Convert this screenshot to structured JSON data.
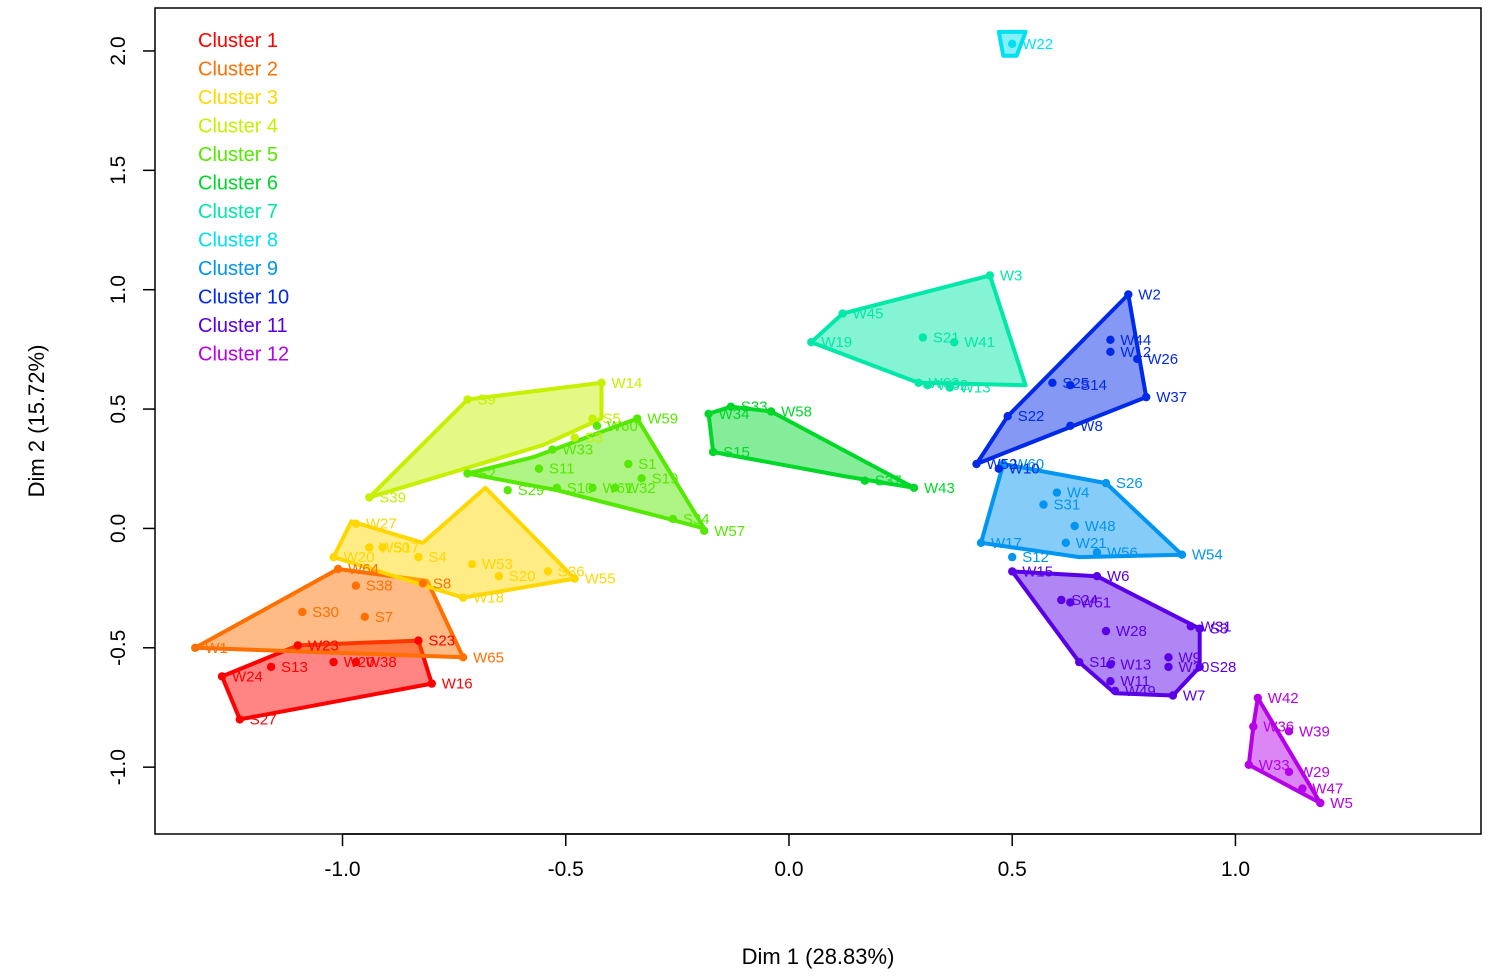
{
  "chart_data": {
    "type": "scatter",
    "xlabel": "Dim 1 (28.83%)",
    "ylabel": "Dim 2 (15.72%)",
    "xlim": [
      -1.42,
      1.55
    ],
    "ylim": [
      -1.28,
      2.18
    ],
    "x_ticks": [
      -1.0,
      -0.5,
      0.0,
      0.5,
      1.0
    ],
    "x_tick_labels": [
      "-1.0",
      "-0.5",
      "0.0",
      "0.5",
      "1.0"
    ],
    "y_ticks": [
      -1.0,
      -0.5,
      0.0,
      0.5,
      1.0,
      1.5,
      2.0
    ],
    "y_tick_labels": [
      "-1.0",
      "-0.5",
      "0.0",
      "0.5",
      "1.0",
      "1.5",
      "2.0"
    ],
    "grid": false,
    "legend_position": "top-left",
    "series": [
      {
        "name": "Cluster 1",
        "color": "#FF0000",
        "hull": [
          [
            -1.23,
            -0.8
          ],
          [
            -1.27,
            -0.62
          ],
          [
            -1.1,
            -0.49
          ],
          [
            -0.83,
            -0.47
          ],
          [
            -0.8,
            -0.65
          ]
        ],
        "points": [
          {
            "label": "W24",
            "x": -1.27,
            "y": -0.62
          },
          {
            "label": "S27",
            "x": -1.23,
            "y": -0.8
          },
          {
            "label": "S13",
            "x": -1.16,
            "y": -0.58
          },
          {
            "label": "W23",
            "x": -1.1,
            "y": -0.49
          },
          {
            "label": "W20",
            "x": -1.02,
            "y": -0.56
          },
          {
            "label": "W38",
            "x": -0.97,
            "y": -0.56
          },
          {
            "label": "S23",
            "x": -0.83,
            "y": -0.47
          },
          {
            "label": "W16",
            "x": -0.8,
            "y": -0.65
          }
        ]
      },
      {
        "name": "Cluster 2",
        "color": "#FF7000",
        "hull": [
          [
            -1.33,
            -0.5
          ],
          [
            -1.01,
            -0.17
          ],
          [
            -0.81,
            -0.22
          ],
          [
            -0.73,
            -0.54
          ]
        ],
        "points": [
          {
            "label": "W1",
            "x": -1.33,
            "y": -0.5
          },
          {
            "label": "S30",
            "x": -1.09,
            "y": -0.35
          },
          {
            "label": "S7",
            "x": -0.95,
            "y": -0.37
          },
          {
            "label": "S38",
            "x": -0.97,
            "y": -0.24
          },
          {
            "label": "W64",
            "x": -1.01,
            "y": -0.17
          },
          {
            "label": "S8",
            "x": -0.82,
            "y": -0.23
          },
          {
            "label": "W65",
            "x": -0.73,
            "y": -0.54
          }
        ]
      },
      {
        "name": "Cluster 3",
        "color": "#FFD700",
        "hull": [
          [
            -1.02,
            -0.12
          ],
          [
            -0.98,
            0.03
          ],
          [
            -0.91,
            -0.01
          ],
          [
            -0.82,
            -0.06
          ],
          [
            -0.68,
            0.17
          ],
          [
            -0.48,
            -0.21
          ],
          [
            -0.73,
            -0.29
          ]
        ],
        "points": [
          {
            "label": "W27",
            "x": -0.97,
            "y": 0.02
          },
          {
            "label": "W20",
            "x": -1.02,
            "y": -0.12
          },
          {
            "label": "W50",
            "x": -0.94,
            "y": -0.08
          },
          {
            "label": "S17",
            "x": -0.91,
            "y": -0.08
          },
          {
            "label": "S4",
            "x": -0.83,
            "y": -0.12
          },
          {
            "label": "W53",
            "x": -0.71,
            "y": -0.15
          },
          {
            "label": "S20",
            "x": -0.65,
            "y": -0.2
          },
          {
            "label": "S36",
            "x": -0.54,
            "y": -0.18
          },
          {
            "label": "W55",
            "x": -0.48,
            "y": -0.21
          },
          {
            "label": "W18",
            "x": -0.73,
            "y": -0.29
          }
        ]
      },
      {
        "name": "Cluster 4",
        "color": "#C5F000",
        "hull": [
          [
            -0.94,
            0.13
          ],
          [
            -0.72,
            0.54
          ],
          [
            -0.42,
            0.61
          ],
          [
            -0.42,
            0.46
          ],
          [
            -0.55,
            0.35
          ]
        ],
        "points": [
          {
            "label": "S9",
            "x": -0.72,
            "y": 0.54
          },
          {
            "label": "W14",
            "x": -0.42,
            "y": 0.61
          },
          {
            "label": "S39",
            "x": -0.94,
            "y": 0.13
          },
          {
            "label": "S5",
            "x": -0.44,
            "y": 0.46
          },
          {
            "label": "S3",
            "x": -0.48,
            "y": 0.38
          }
        ]
      },
      {
        "name": "Cluster 5",
        "color": "#55E800",
        "hull": [
          [
            -0.72,
            0.23
          ],
          [
            -0.57,
            0.3
          ],
          [
            -0.34,
            0.46
          ],
          [
            -0.19,
            0.0
          ],
          [
            -0.29,
            0.05
          ],
          [
            -0.52,
            0.16
          ]
        ],
        "points": [
          {
            "label": "W59",
            "x": -0.34,
            "y": 0.46
          },
          {
            "label": "W60",
            "x": -0.43,
            "y": 0.43
          },
          {
            "label": "W33",
            "x": -0.53,
            "y": 0.33
          },
          {
            "label": "S11",
            "x": -0.56,
            "y": 0.25
          },
          {
            "label": "S1",
            "x": -0.36,
            "y": 0.27
          },
          {
            "label": "S19",
            "x": -0.33,
            "y": 0.21
          },
          {
            "label": "S10",
            "x": -0.52,
            "y": 0.17
          },
          {
            "label": "W61",
            "x": -0.44,
            "y": 0.17
          },
          {
            "label": "W32",
            "x": -0.39,
            "y": 0.17
          },
          {
            "label": "S2",
            "x": -0.72,
            "y": 0.23
          },
          {
            "label": "S29",
            "x": -0.63,
            "y": 0.16
          },
          {
            "label": "S34",
            "x": -0.26,
            "y": 0.04
          },
          {
            "label": "W57",
            "x": -0.19,
            "y": -0.01
          }
        ]
      },
      {
        "name": "Cluster 6",
        "color": "#00D829",
        "hull": [
          [
            -0.18,
            0.48
          ],
          [
            -0.13,
            0.51
          ],
          [
            -0.04,
            0.49
          ],
          [
            0.28,
            0.17
          ],
          [
            0.12,
            0.22
          ],
          [
            -0.17,
            0.32
          ]
        ],
        "points": [
          {
            "label": "S33",
            "x": -0.13,
            "y": 0.51
          },
          {
            "label": "W34",
            "x": -0.18,
            "y": 0.48
          },
          {
            "label": "W58",
            "x": -0.04,
            "y": 0.49
          },
          {
            "label": "S15",
            "x": -0.17,
            "y": 0.32
          },
          {
            "label": "S37",
            "x": 0.17,
            "y": 0.2
          },
          {
            "label": "W43",
            "x": 0.28,
            "y": 0.17
          }
        ]
      },
      {
        "name": "Cluster 7",
        "color": "#00E8A8",
        "hull": [
          [
            0.05,
            0.78
          ],
          [
            0.12,
            0.9
          ],
          [
            0.45,
            1.06
          ],
          [
            0.53,
            0.6
          ],
          [
            0.29,
            0.61
          ]
        ],
        "points": [
          {
            "label": "W3",
            "x": 0.45,
            "y": 1.06
          },
          {
            "label": "W45",
            "x": 0.12,
            "y": 0.9
          },
          {
            "label": "W19",
            "x": 0.05,
            "y": 0.78
          },
          {
            "label": "S21",
            "x": 0.3,
            "y": 0.8
          },
          {
            "label": "W41",
            "x": 0.37,
            "y": 0.78
          },
          {
            "label": "W62",
            "x": 0.31,
            "y": 0.6
          },
          {
            "label": "W63",
            "x": 0.29,
            "y": 0.61
          },
          {
            "label": "W13",
            "x": 0.36,
            "y": 0.59
          }
        ]
      },
      {
        "name": "Cluster 8",
        "color": "#00E0F0",
        "hull": [
          [
            0.47,
            2.08
          ],
          [
            0.53,
            2.08
          ],
          [
            0.51,
            1.98
          ],
          [
            0.48,
            1.98
          ]
        ],
        "points": [
          {
            "label": "W22",
            "x": 0.5,
            "y": 2.03
          }
        ]
      },
      {
        "name": "Cluster 9",
        "color": "#0095F0",
        "hull": [
          [
            0.43,
            -0.06
          ],
          [
            0.48,
            0.27
          ],
          [
            0.71,
            0.19
          ],
          [
            0.88,
            -0.11
          ],
          [
            0.65,
            -0.12
          ]
        ],
        "points": [
          {
            "label": "W60",
            "x": 0.48,
            "y": 0.27
          },
          {
            "label": "S26",
            "x": 0.71,
            "y": 0.19
          },
          {
            "label": "W4",
            "x": 0.6,
            "y": 0.15
          },
          {
            "label": "S31",
            "x": 0.57,
            "y": 0.1
          },
          {
            "label": "W48",
            "x": 0.64,
            "y": 0.01
          },
          {
            "label": "W17",
            "x": 0.43,
            "y": -0.06
          },
          {
            "label": "W21",
            "x": 0.62,
            "y": -0.06
          },
          {
            "label": "S12",
            "x": 0.5,
            "y": -0.12
          },
          {
            "label": "W56",
            "x": 0.69,
            "y": -0.1
          },
          {
            "label": "W54",
            "x": 0.88,
            "y": -0.11
          }
        ]
      },
      {
        "name": "Cluster 10",
        "color": "#002AE8",
        "hull": [
          [
            0.42,
            0.27
          ],
          [
            0.49,
            0.47
          ],
          [
            0.76,
            0.98
          ],
          [
            0.8,
            0.55
          ]
        ],
        "points": [
          {
            "label": "W2",
            "x": 0.76,
            "y": 0.98
          },
          {
            "label": "W44",
            "x": 0.72,
            "y": 0.79
          },
          {
            "label": "W12",
            "x": 0.72,
            "y": 0.74
          },
          {
            "label": "W26",
            "x": 0.78,
            "y": 0.71
          },
          {
            "label": "W37",
            "x": 0.8,
            "y": 0.55
          },
          {
            "label": "S25",
            "x": 0.59,
            "y": 0.61
          },
          {
            "label": "S14",
            "x": 0.63,
            "y": 0.6
          },
          {
            "label": "S22",
            "x": 0.49,
            "y": 0.47
          },
          {
            "label": "W8",
            "x": 0.63,
            "y": 0.43
          },
          {
            "label": "W10",
            "x": 0.47,
            "y": 0.25
          },
          {
            "label": "W52",
            "x": 0.42,
            "y": 0.27
          }
        ]
      },
      {
        "name": "Cluster 11",
        "color": "#5A00E8",
        "hull": [
          [
            0.5,
            -0.18
          ],
          [
            0.69,
            -0.2
          ],
          [
            0.92,
            -0.42
          ],
          [
            0.92,
            -0.58
          ],
          [
            0.86,
            -0.7
          ],
          [
            0.73,
            -0.69
          ],
          [
            0.65,
            -0.56
          ]
        ],
        "points": [
          {
            "label": "W15",
            "x": 0.5,
            "y": -0.18
          },
          {
            "label": "W6",
            "x": 0.69,
            "y": -0.2
          },
          {
            "label": "S24",
            "x": 0.61,
            "y": -0.3
          },
          {
            "label": "W51",
            "x": 0.63,
            "y": -0.31
          },
          {
            "label": "W28",
            "x": 0.71,
            "y": -0.43
          },
          {
            "label": "W31",
            "x": 0.9,
            "y": -0.41
          },
          {
            "label": "S3",
            "x": 0.92,
            "y": -0.42
          },
          {
            "label": "S16",
            "x": 0.65,
            "y": -0.56
          },
          {
            "label": "W13",
            "x": 0.72,
            "y": -0.57
          },
          {
            "label": "W9",
            "x": 0.85,
            "y": -0.54
          },
          {
            "label": "W30",
            "x": 0.85,
            "y": -0.58
          },
          {
            "label": "S28",
            "x": 0.92,
            "y": -0.58
          },
          {
            "label": "W11",
            "x": 0.72,
            "y": -0.64
          },
          {
            "label": "W49",
            "x": 0.73,
            "y": -0.68
          },
          {
            "label": "W7",
            "x": 0.86,
            "y": -0.7
          }
        ]
      },
      {
        "name": "Cluster 12",
        "color": "#B600E8",
        "hull": [
          [
            1.03,
            -0.99
          ],
          [
            1.19,
            -1.15
          ],
          [
            1.05,
            -0.71
          ],
          [
            1.04,
            -0.83
          ]
        ],
        "points": [
          {
            "label": "W42",
            "x": 1.05,
            "y": -0.71
          },
          {
            "label": "W36",
            "x": 1.04,
            "y": -0.83
          },
          {
            "label": "W39",
            "x": 1.12,
            "y": -0.85
          },
          {
            "label": "W33",
            "x": 1.03,
            "y": -0.99
          },
          {
            "label": "W29",
            "x": 1.12,
            "y": -1.02
          },
          {
            "label": "W47",
            "x": 1.15,
            "y": -1.09
          },
          {
            "label": "W5",
            "x": 1.19,
            "y": -1.15
          }
        ]
      }
    ]
  }
}
